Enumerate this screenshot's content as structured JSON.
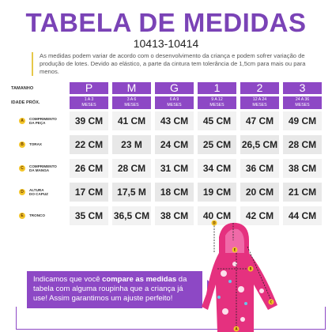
{
  "title": "TABELA DE MEDIDAS",
  "code": "10413-10414",
  "note": "As medidas podem variar de acordo com o desenvolvimento da criança e podem sofrer variação de produção de lotes. Devido ao elástico, a parte da cintura tem tolerância de 1,5cm para mais ou para menos.",
  "table": {
    "size_label": "TAMANHO",
    "age_label": "IDADE PRÓX.",
    "sizes": [
      "P",
      "M",
      "G",
      "1",
      "2",
      "3"
    ],
    "ages": [
      [
        "1 A 3",
        "MESES"
      ],
      [
        "3 A 6",
        "MESES"
      ],
      [
        "6 A 9",
        "MESES"
      ],
      [
        "9 A 12",
        "MESES"
      ],
      [
        "12 A 24",
        "MESES"
      ],
      [
        "24 A 36",
        "MESES"
      ]
    ],
    "rows": [
      {
        "letter": "A",
        "label": [
          "COMPRIMENTO",
          "DA PEÇA"
        ],
        "values": [
          "39 CM",
          "41 CM",
          "43 CM",
          "45 CM",
          "47 CM",
          "49 CM"
        ]
      },
      {
        "letter": "B",
        "label": [
          "TORAX"
        ],
        "values": [
          "22 CM",
          "23 M",
          "24 CM",
          "25 CM",
          "26,5 CM",
          "28 CM"
        ]
      },
      {
        "letter": "C",
        "label": [
          "COMPRIMENTO",
          "DA MANGA"
        ],
        "values": [
          "26 CM",
          "28 CM",
          "31 CM",
          "34 CM",
          "36 CM",
          "38 CM"
        ]
      },
      {
        "letter": "D",
        "label": [
          "ALTURA",
          "DO CAPUZ"
        ],
        "values": [
          "17 CM",
          "17,5 M",
          "18 CM",
          "19 CM",
          "20 CM",
          "21 CM"
        ]
      },
      {
        "letter": "E",
        "label": [
          "TRONCO"
        ],
        "values": [
          "35 CM",
          "36,5 CM",
          "38 CM",
          "40 CM",
          "42 CM",
          "44 CM"
        ]
      }
    ]
  },
  "callout": {
    "p1": "Indicamos que você ",
    "b1": "compare as medidas",
    "p2": " da tabela com alguma roupinha que a criança já use! Assim garantimos um ajuste perfeito!"
  },
  "diagram_letters": [
    "A",
    "B",
    "C",
    "D",
    "E"
  ],
  "colors": {
    "accent": "#8d48c5",
    "title": "#7a43b6",
    "dot": "#f3c52a",
    "garment": "#e5317f"
  }
}
